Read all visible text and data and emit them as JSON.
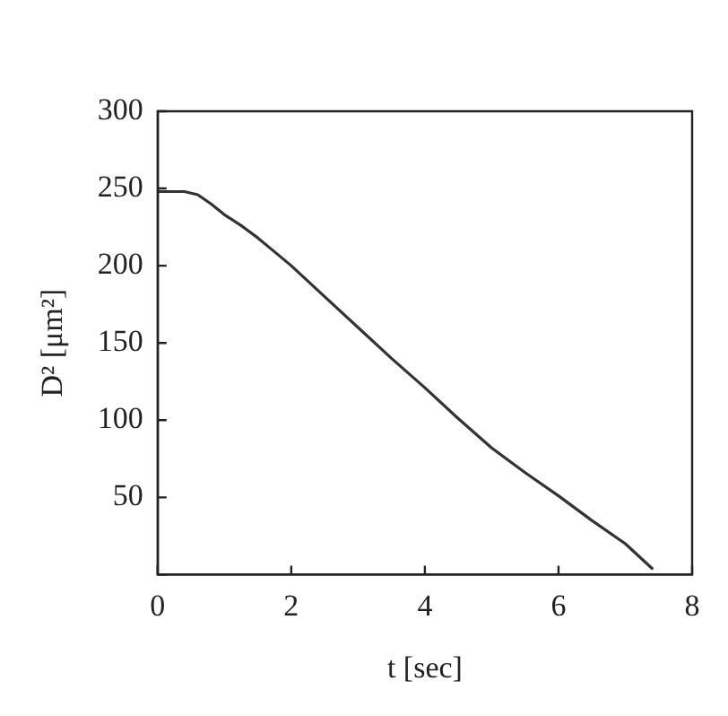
{
  "chart_data": {
    "type": "line",
    "xlabel": "t [sec]",
    "ylabel": "D² [μm²]",
    "x": [
      0,
      0.2,
      0.4,
      0.6,
      0.8,
      1,
      1.25,
      1.5,
      1.75,
      2,
      2.5,
      3,
      3.5,
      4,
      4.5,
      5,
      5.5,
      6,
      6.5,
      7,
      7.2,
      7.4
    ],
    "series": [
      {
        "color": "#333333",
        "values": [
          248,
          248,
          248,
          246,
          240,
          233,
          226,
          218,
          209,
          200,
          180,
          160,
          140,
          121,
          101,
          82,
          66,
          51,
          35,
          20,
          12,
          4
        ]
      }
    ],
    "xlim": [
      0,
      8
    ],
    "xticks": [
      0,
      2,
      4,
      6,
      8
    ],
    "ylim": [
      0,
      300
    ],
    "yticks": [
      {
        "value": 0,
        "label": null
      },
      50,
      100,
      150,
      200,
      250,
      300
    ],
    "grid": false,
    "legend": false,
    "marker": "none",
    "line_style": "solid"
  }
}
